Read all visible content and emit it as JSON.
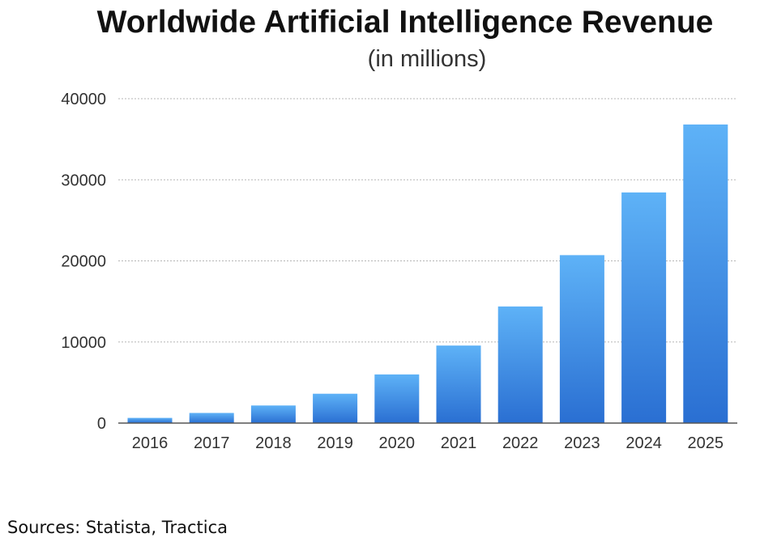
{
  "chart_data": {
    "type": "bar",
    "title": "Worldwide Artificial Intelligence Revenue",
    "subtitle": "(in millions)",
    "categories": [
      "2016",
      "2017",
      "2018",
      "2019",
      "2020",
      "2021",
      "2022",
      "2023",
      "2024",
      "2025"
    ],
    "values": [
      640,
      1250,
      2170,
      3620,
      6000,
      9560,
      14380,
      20710,
      28440,
      36820
    ],
    "ylim": [
      0,
      40000
    ],
    "yticks": [
      "0",
      "10000",
      "20000",
      "30000",
      "40000"
    ],
    "grid": true,
    "legend": "none",
    "colors": {
      "bar_top": "#5eb2f7",
      "bar_bottom": "#2a6fd2",
      "grid": "#b5b5b5",
      "axis": "#555555"
    }
  },
  "source_note": "Sources: Statista, Tractica"
}
